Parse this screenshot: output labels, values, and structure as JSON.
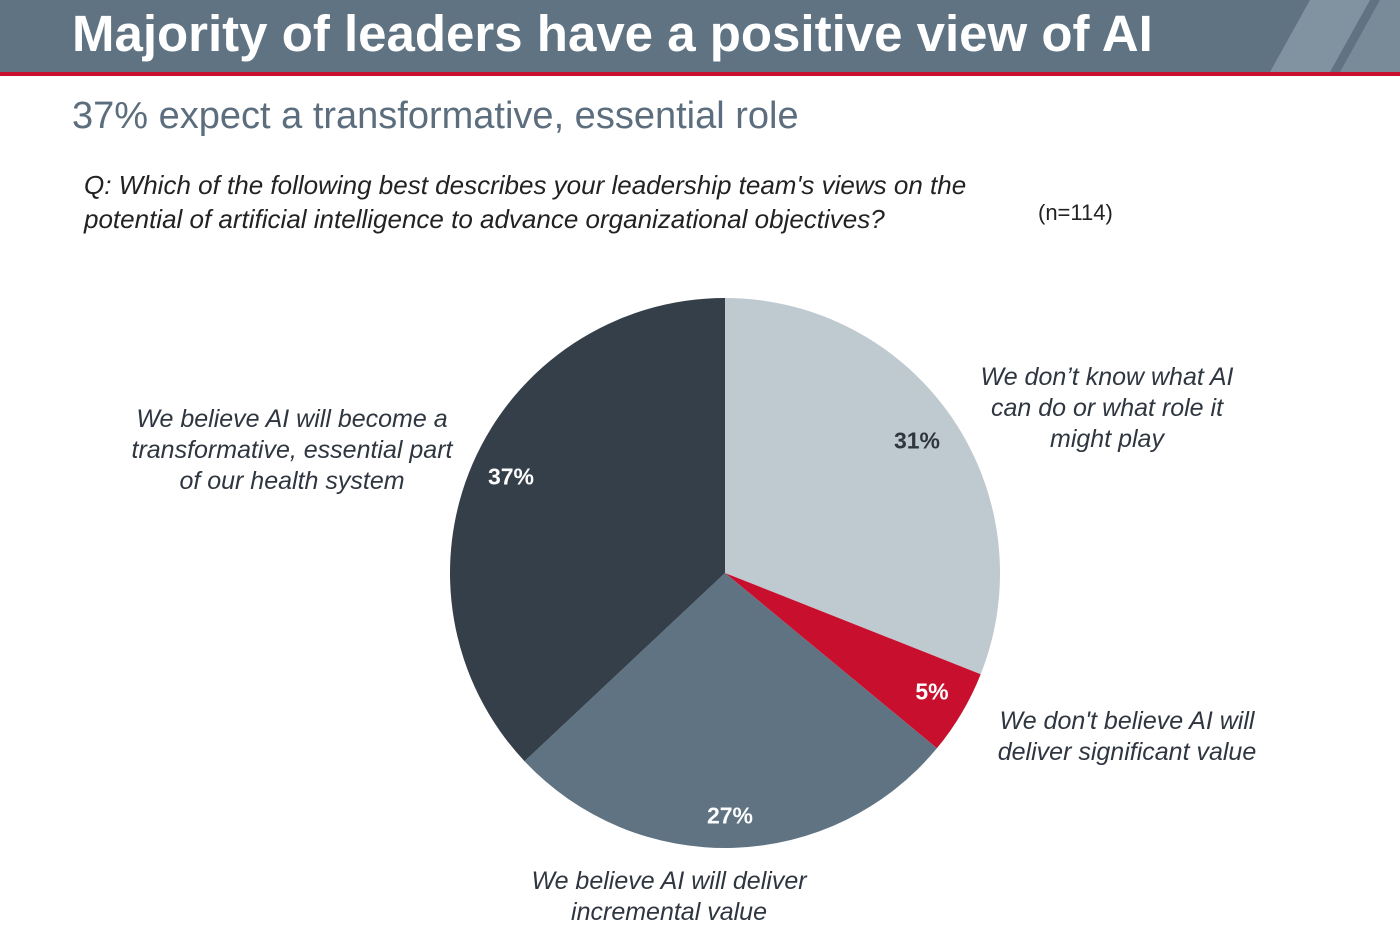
{
  "header": {
    "title": "Majority of leaders have a positive view of AI"
  },
  "subtitle": "37% expect a transformative, essential role",
  "question": {
    "text": "Q: Which of the following best describes your leadership team's views on the potential of artificial intelligence to advance organizational objectives?",
    "sample_size": "(n=114)"
  },
  "colors": {
    "header_bg": "#5f7383",
    "accent_red": "#c8102e"
  },
  "chart_data": {
    "type": "pie",
    "title": "",
    "start_angle_deg": 0,
    "direction": "clockwise",
    "slices": [
      {
        "label": "We don’t know what AI can do or what role it might play",
        "value": 31,
        "display": "31%",
        "color": "#bfc9d0",
        "label_color": "#2f3640"
      },
      {
        "label": "We don't believe AI will deliver significant value",
        "value": 5,
        "display": "5%",
        "color": "#c8102e",
        "label_color": "#ffffff"
      },
      {
        "label": "We believe AI will deliver incremental value",
        "value": 27,
        "display": "27%",
        "color": "#5f7383",
        "label_color": "#ffffff"
      },
      {
        "label": "We believe AI will become a transformative, essential part of our health system",
        "value": 37,
        "display": "37%",
        "color": "#353f4a",
        "label_color": "#ffffff"
      }
    ]
  }
}
